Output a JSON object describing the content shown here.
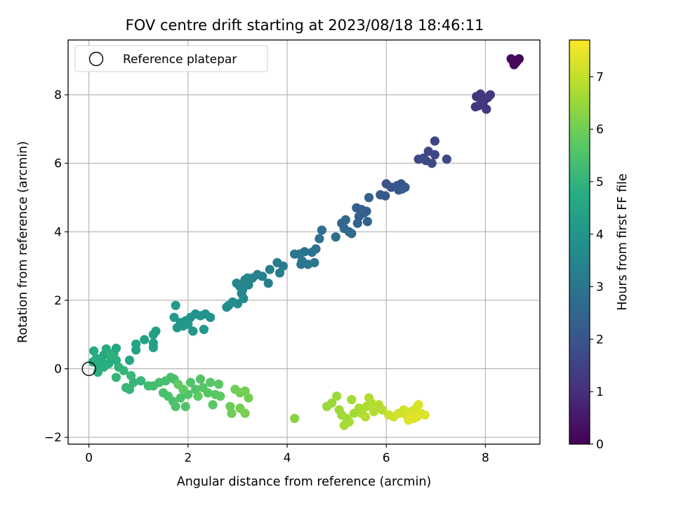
{
  "chart_data": {
    "type": "scatter",
    "title": "FOV centre drift starting at 2023/08/18 18:46:11",
    "xlabel": "Angular distance from reference (arcmin)",
    "ylabel": "Rotation from reference (arcmin)",
    "xlim": [
      -0.42,
      9.1
    ],
    "ylim": [
      -2.2,
      9.6
    ],
    "xticks": [
      0,
      2,
      4,
      6,
      8
    ],
    "yticks": [
      -2,
      0,
      2,
      4,
      6,
      8
    ],
    "grid": true,
    "legend": {
      "placement": "top-left",
      "entries": [
        "Reference platepar"
      ]
    },
    "reference_point": {
      "x": 0,
      "y": 0
    },
    "colorbar": {
      "label": "Hours from first FF file",
      "min": 0,
      "max": 7.7,
      "ticks": [
        0,
        1,
        2,
        3,
        4,
        5,
        6,
        7
      ],
      "colormap": "viridis"
    },
    "points": [
      {
        "x": 8.55,
        "y": 9.0,
        "h": 0.1
      },
      {
        "x": 8.62,
        "y": 8.95,
        "h": 0.12
      },
      {
        "x": 8.68,
        "y": 9.05,
        "h": 0.14
      },
      {
        "x": 8.58,
        "y": 8.88,
        "h": 0.16
      },
      {
        "x": 8.66,
        "y": 9.02,
        "h": 0.18
      },
      {
        "x": 8.52,
        "y": 9.05,
        "h": 0.2
      },
      {
        "x": 7.82,
        "y": 7.95,
        "h": 1.1
      },
      {
        "x": 7.9,
        "y": 8.02,
        "h": 1.12
      },
      {
        "x": 7.98,
        "y": 7.85,
        "h": 1.14
      },
      {
        "x": 8.05,
        "y": 7.92,
        "h": 1.16
      },
      {
        "x": 7.86,
        "y": 7.68,
        "h": 1.18
      },
      {
        "x": 8.02,
        "y": 7.58,
        "h": 1.2
      },
      {
        "x": 7.95,
        "y": 7.75,
        "h": 1.22
      },
      {
        "x": 8.1,
        "y": 8.0,
        "h": 1.24
      },
      {
        "x": 7.8,
        "y": 7.65,
        "h": 1.26
      },
      {
        "x": 7.92,
        "y": 7.8,
        "h": 1.28
      },
      {
        "x": 6.98,
        "y": 6.65,
        "h": 1.6
      },
      {
        "x": 6.85,
        "y": 6.35,
        "h": 1.62
      },
      {
        "x": 6.98,
        "y": 6.25,
        "h": 1.64
      },
      {
        "x": 6.65,
        "y": 6.12,
        "h": 1.66
      },
      {
        "x": 6.8,
        "y": 6.08,
        "h": 1.68
      },
      {
        "x": 7.22,
        "y": 6.12,
        "h": 1.7
      },
      {
        "x": 6.92,
        "y": 6.0,
        "h": 1.72
      },
      {
        "x": 6.75,
        "y": 6.15,
        "h": 1.74
      },
      {
        "x": 6.0,
        "y": 5.4,
        "h": 2.0
      },
      {
        "x": 6.1,
        "y": 5.3,
        "h": 2.02
      },
      {
        "x": 6.22,
        "y": 5.35,
        "h": 2.04
      },
      {
        "x": 6.3,
        "y": 5.4,
        "h": 2.06
      },
      {
        "x": 6.38,
        "y": 5.3,
        "h": 2.08
      },
      {
        "x": 6.25,
        "y": 5.22,
        "h": 2.1
      },
      {
        "x": 5.88,
        "y": 5.08,
        "h": 2.12
      },
      {
        "x": 5.98,
        "y": 5.05,
        "h": 2.14
      },
      {
        "x": 6.32,
        "y": 5.25,
        "h": 2.16
      },
      {
        "x": 5.4,
        "y": 4.7,
        "h": 2.3
      },
      {
        "x": 5.5,
        "y": 4.65,
        "h": 2.32
      },
      {
        "x": 5.55,
        "y": 4.55,
        "h": 2.34
      },
      {
        "x": 5.45,
        "y": 4.45,
        "h": 2.36
      },
      {
        "x": 5.6,
        "y": 4.6,
        "h": 2.38
      },
      {
        "x": 5.62,
        "y": 4.3,
        "h": 2.4
      },
      {
        "x": 5.42,
        "y": 4.25,
        "h": 2.42
      },
      {
        "x": 5.65,
        "y": 5.0,
        "h": 2.44
      },
      {
        "x": 5.1,
        "y": 4.25,
        "h": 2.6
      },
      {
        "x": 5.18,
        "y": 4.35,
        "h": 2.62
      },
      {
        "x": 5.25,
        "y": 4.0,
        "h": 2.64
      },
      {
        "x": 5.3,
        "y": 3.95,
        "h": 2.66
      },
      {
        "x": 5.15,
        "y": 4.1,
        "h": 2.68
      },
      {
        "x": 4.98,
        "y": 3.85,
        "h": 2.7
      },
      {
        "x": 4.65,
        "y": 3.8,
        "h": 2.85
      },
      {
        "x": 4.7,
        "y": 4.05,
        "h": 2.87
      },
      {
        "x": 4.58,
        "y": 3.5,
        "h": 2.89
      },
      {
        "x": 4.5,
        "y": 3.4,
        "h": 2.91
      },
      {
        "x": 4.35,
        "y": 3.42,
        "h": 2.93
      },
      {
        "x": 4.25,
        "y": 3.35,
        "h": 2.95
      },
      {
        "x": 4.15,
        "y": 3.35,
        "h": 2.97
      },
      {
        "x": 4.28,
        "y": 3.05,
        "h": 2.99
      },
      {
        "x": 4.42,
        "y": 3.05,
        "h": 3.01
      },
      {
        "x": 4.55,
        "y": 3.1,
        "h": 3.03
      },
      {
        "x": 4.3,
        "y": 3.15,
        "h": 3.05
      },
      {
        "x": 3.8,
        "y": 3.1,
        "h": 3.2
      },
      {
        "x": 3.92,
        "y": 3.0,
        "h": 3.22
      },
      {
        "x": 3.85,
        "y": 2.8,
        "h": 3.24
      },
      {
        "x": 3.65,
        "y": 2.9,
        "h": 3.26
      },
      {
        "x": 3.5,
        "y": 2.7,
        "h": 3.28
      },
      {
        "x": 3.62,
        "y": 2.5,
        "h": 3.3
      },
      {
        "x": 3.4,
        "y": 2.75,
        "h": 3.32
      },
      {
        "x": 3.3,
        "y": 2.65,
        "h": 3.34
      },
      {
        "x": 3.15,
        "y": 2.6,
        "h": 3.45
      },
      {
        "x": 3.22,
        "y": 2.45,
        "h": 3.47
      },
      {
        "x": 3.05,
        "y": 2.4,
        "h": 3.49
      },
      {
        "x": 2.98,
        "y": 2.5,
        "h": 3.51
      },
      {
        "x": 3.1,
        "y": 2.3,
        "h": 3.53
      },
      {
        "x": 3.08,
        "y": 2.2,
        "h": 3.55
      },
      {
        "x": 3.2,
        "y": 2.65,
        "h": 3.57
      },
      {
        "x": 3.12,
        "y": 2.05,
        "h": 3.59
      },
      {
        "x": 2.9,
        "y": 1.95,
        "h": 3.7
      },
      {
        "x": 3.0,
        "y": 1.9,
        "h": 3.72
      },
      {
        "x": 2.82,
        "y": 1.85,
        "h": 3.74
      },
      {
        "x": 2.78,
        "y": 1.8,
        "h": 3.76
      },
      {
        "x": 2.45,
        "y": 1.5,
        "h": 3.9
      },
      {
        "x": 2.35,
        "y": 1.6,
        "h": 3.92
      },
      {
        "x": 2.25,
        "y": 1.55,
        "h": 3.94
      },
      {
        "x": 2.15,
        "y": 1.6,
        "h": 3.96
      },
      {
        "x": 2.05,
        "y": 1.5,
        "h": 3.98
      },
      {
        "x": 1.95,
        "y": 1.4,
        "h": 4.0
      },
      {
        "x": 1.85,
        "y": 1.35,
        "h": 4.02
      },
      {
        "x": 1.78,
        "y": 1.2,
        "h": 4.04
      },
      {
        "x": 1.9,
        "y": 1.25,
        "h": 4.06
      },
      {
        "x": 2.1,
        "y": 1.1,
        "h": 4.08
      },
      {
        "x": 2.32,
        "y": 1.15,
        "h": 4.1
      },
      {
        "x": 2.0,
        "y": 1.3,
        "h": 4.12
      },
      {
        "x": 1.72,
        "y": 1.5,
        "h": 4.14
      },
      {
        "x": 1.75,
        "y": 1.85,
        "h": 4.16
      },
      {
        "x": 1.35,
        "y": 1.1,
        "h": 4.3
      },
      {
        "x": 1.3,
        "y": 1.0,
        "h": 4.32
      },
      {
        "x": 1.3,
        "y": 0.75,
        "h": 4.34
      },
      {
        "x": 1.3,
        "y": 0.62,
        "h": 4.36
      },
      {
        "x": 1.12,
        "y": 0.85,
        "h": 4.38
      },
      {
        "x": 0.95,
        "y": 0.72,
        "h": 4.4
      },
      {
        "x": 0.95,
        "y": 0.55,
        "h": 4.42
      },
      {
        "x": 0.82,
        "y": 0.25,
        "h": 4.44
      },
      {
        "x": 0.55,
        "y": 0.6,
        "h": 4.6
      },
      {
        "x": 0.5,
        "y": 0.45,
        "h": 4.62
      },
      {
        "x": 0.45,
        "y": 0.3,
        "h": 4.64
      },
      {
        "x": 0.35,
        "y": 0.58,
        "h": 4.66
      },
      {
        "x": 0.3,
        "y": 0.4,
        "h": 4.68
      },
      {
        "x": 0.25,
        "y": 0.25,
        "h": 4.7
      },
      {
        "x": 0.15,
        "y": 0.3,
        "h": 4.72
      },
      {
        "x": 0.1,
        "y": 0.52,
        "h": 4.74
      },
      {
        "x": 0.08,
        "y": 0.2,
        "h": 4.76
      },
      {
        "x": 0.2,
        "y": 0.1,
        "h": 4.78
      },
      {
        "x": 0.4,
        "y": 0.15,
        "h": 4.8
      },
      {
        "x": 0.55,
        "y": 0.25,
        "h": 4.82
      },
      {
        "x": 0.3,
        "y": 0.05,
        "h": 4.84
      },
      {
        "x": 0.18,
        "y": -0.1,
        "h": 4.86
      },
      {
        "x": 0.45,
        "y": 0.4,
        "h": 4.88
      },
      {
        "x": 0.6,
        "y": 0.05,
        "h": 5.0
      },
      {
        "x": 0.7,
        "y": -0.05,
        "h": 5.02
      },
      {
        "x": 0.55,
        "y": -0.25,
        "h": 5.04
      },
      {
        "x": 0.75,
        "y": -0.55,
        "h": 5.06
      },
      {
        "x": 0.82,
        "y": -0.6,
        "h": 5.08
      },
      {
        "x": 0.9,
        "y": -0.4,
        "h": 5.1
      },
      {
        "x": 1.05,
        "y": -0.35,
        "h": 5.12
      },
      {
        "x": 0.85,
        "y": -0.2,
        "h": 5.14
      },
      {
        "x": 1.2,
        "y": -0.5,
        "h": 5.3
      },
      {
        "x": 1.3,
        "y": -0.5,
        "h": 5.32
      },
      {
        "x": 1.42,
        "y": -0.4,
        "h": 5.34
      },
      {
        "x": 1.55,
        "y": -0.35,
        "h": 5.36
      },
      {
        "x": 1.65,
        "y": -0.25,
        "h": 5.38
      },
      {
        "x": 1.72,
        "y": -0.3,
        "h": 5.4
      },
      {
        "x": 1.5,
        "y": -0.7,
        "h": 5.42
      },
      {
        "x": 1.6,
        "y": -0.8,
        "h": 5.44
      },
      {
        "x": 1.7,
        "y": -0.95,
        "h": 5.46
      },
      {
        "x": 1.75,
        "y": -1.1,
        "h": 5.48
      },
      {
        "x": 1.85,
        "y": -0.85,
        "h": 5.5
      },
      {
        "x": 1.95,
        "y": -1.1,
        "h": 5.52
      },
      {
        "x": 2.0,
        "y": -0.75,
        "h": 5.54
      },
      {
        "x": 2.05,
        "y": -0.4,
        "h": 5.56
      },
      {
        "x": 2.15,
        "y": -0.6,
        "h": 5.58
      },
      {
        "x": 2.25,
        "y": -0.3,
        "h": 5.6
      },
      {
        "x": 2.3,
        "y": -0.55,
        "h": 5.62
      },
      {
        "x": 2.4,
        "y": -0.7,
        "h": 5.64
      },
      {
        "x": 2.45,
        "y": -0.4,
        "h": 5.66
      },
      {
        "x": 2.5,
        "y": -1.05,
        "h": 5.68
      },
      {
        "x": 2.55,
        "y": -0.75,
        "h": 5.7
      },
      {
        "x": 2.62,
        "y": -0.45,
        "h": 5.72
      },
      {
        "x": 2.65,
        "y": -0.8,
        "h": 5.74
      },
      {
        "x": 2.2,
        "y": -0.8,
        "h": 5.76
      },
      {
        "x": 1.9,
        "y": -0.6,
        "h": 5.78
      },
      {
        "x": 1.8,
        "y": -0.45,
        "h": 5.8
      },
      {
        "x": 2.85,
        "y": -1.1,
        "h": 5.95
      },
      {
        "x": 2.88,
        "y": -1.3,
        "h": 5.97
      },
      {
        "x": 2.95,
        "y": -0.6,
        "h": 5.99
      },
      {
        "x": 3.05,
        "y": -0.7,
        "h": 6.01
      },
      {
        "x": 3.15,
        "y": -0.65,
        "h": 6.03
      },
      {
        "x": 3.22,
        "y": -0.85,
        "h": 6.05
      },
      {
        "x": 3.05,
        "y": -1.15,
        "h": 6.07
      },
      {
        "x": 3.15,
        "y": -1.3,
        "h": 6.09
      },
      {
        "x": 4.15,
        "y": -1.45,
        "h": 6.3
      },
      {
        "x": 4.8,
        "y": -1.1,
        "h": 6.5
      },
      {
        "x": 4.9,
        "y": -1.0,
        "h": 6.52
      },
      {
        "x": 5.0,
        "y": -0.8,
        "h": 6.54
      },
      {
        "x": 5.05,
        "y": -1.2,
        "h": 6.56
      },
      {
        "x": 5.1,
        "y": -1.35,
        "h": 6.58
      },
      {
        "x": 5.2,
        "y": -1.45,
        "h": 6.6
      },
      {
        "x": 5.3,
        "y": -0.9,
        "h": 6.62
      },
      {
        "x": 5.35,
        "y": -1.3,
        "h": 6.64
      },
      {
        "x": 5.15,
        "y": -1.65,
        "h": 6.66
      },
      {
        "x": 5.25,
        "y": -1.55,
        "h": 6.68
      },
      {
        "x": 5.45,
        "y": -1.15,
        "h": 6.7
      },
      {
        "x": 5.5,
        "y": -1.3,
        "h": 6.72
      },
      {
        "x": 5.6,
        "y": -1.1,
        "h": 6.74
      },
      {
        "x": 5.65,
        "y": -0.85,
        "h": 6.76
      },
      {
        "x": 5.7,
        "y": -1.0,
        "h": 6.78
      },
      {
        "x": 5.75,
        "y": -1.25,
        "h": 6.8
      },
      {
        "x": 5.85,
        "y": -1.05,
        "h": 6.82
      },
      {
        "x": 5.58,
        "y": -1.4,
        "h": 6.84
      },
      {
        "x": 5.92,
        "y": -1.2,
        "h": 6.86
      },
      {
        "x": 6.05,
        "y": -1.35,
        "h": 7.1
      },
      {
        "x": 6.15,
        "y": -1.4,
        "h": 7.12
      },
      {
        "x": 6.25,
        "y": -1.3,
        "h": 7.14
      },
      {
        "x": 6.35,
        "y": -1.2,
        "h": 7.16
      },
      {
        "x": 6.4,
        "y": -1.35,
        "h": 7.18
      },
      {
        "x": 6.5,
        "y": -1.25,
        "h": 7.2
      },
      {
        "x": 6.55,
        "y": -1.45,
        "h": 7.22
      },
      {
        "x": 6.6,
        "y": -1.15,
        "h": 7.24
      },
      {
        "x": 6.65,
        "y": -1.05,
        "h": 7.26
      },
      {
        "x": 6.7,
        "y": -1.3,
        "h": 7.28
      },
      {
        "x": 6.48,
        "y": -1.4,
        "h": 7.3
      },
      {
        "x": 6.78,
        "y": -1.35,
        "h": 7.32
      },
      {
        "x": 6.62,
        "y": -1.4,
        "h": 7.34
      },
      {
        "x": 6.45,
        "y": -1.5,
        "h": 7.36
      }
    ]
  }
}
